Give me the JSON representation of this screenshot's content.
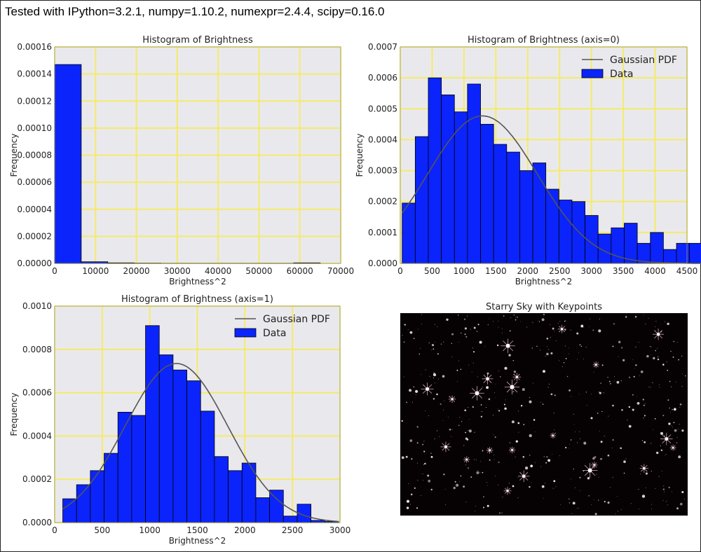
{
  "header": {
    "text": "Tested with IPython=3.2.1, numpy=1.10.2, numexpr=2.4.4, scipy=0.16.0"
  },
  "colors": {
    "axes_bg": "#e9e9ed",
    "grid": "#f5ea6a",
    "bar_fill": "#0b24fb",
    "bar_edge": "#000000",
    "pdf_line": "#555555",
    "sky_bg": "#060203",
    "star": "#f4e6ec"
  },
  "chart_data": [
    {
      "id": "hist_all",
      "type": "bar",
      "title": "Histogram of Brightness",
      "xlabel": "Brightness^2",
      "ylabel": "Frequency",
      "xlim": [
        0,
        70000
      ],
      "ylim": [
        0,
        0.00016
      ],
      "xticks": [
        0,
        10000,
        20000,
        30000,
        40000,
        50000,
        60000,
        70000
      ],
      "xtick_labels": [
        "0",
        "10000",
        "20000",
        "30000",
        "40000",
        "50000",
        "60000",
        "70000"
      ],
      "yticks": [
        0,
        2e-05,
        4e-05,
        6e-05,
        8e-05,
        0.0001,
        0.00012,
        0.00014,
        0.00016
      ],
      "ytick_labels": [
        "0.00000",
        "0.00002",
        "0.00004",
        "0.00006",
        "0.00008",
        "0.00010",
        "0.00012",
        "0.00014",
        "0.00016"
      ],
      "bin_edges": [
        0,
        6500,
        13000,
        19500,
        26000,
        32500,
        39000,
        45500,
        52000,
        58500,
        65000
      ],
      "values": [
        0.000147,
        1.2e-06,
        4e-07,
        2e-07,
        1e-07,
        1e-07,
        1e-07,
        1e-07,
        1e-07,
        4e-07
      ],
      "grid": true
    },
    {
      "id": "hist_axis0",
      "type": "bar",
      "title": "Histogram of Brightness (axis=0)",
      "xlabel": "Brightness^2",
      "ylabel": "Frequency",
      "xlim": [
        0,
        4500
      ],
      "ylim": [
        0,
        0.0007
      ],
      "xticks": [
        0,
        500,
        1000,
        1500,
        2000,
        2500,
        3000,
        3500,
        4000,
        4500
      ],
      "xtick_labels": [
        "0",
        "500",
        "1000",
        "1500",
        "2000",
        "2500",
        "3000",
        "3500",
        "4000",
        "4500"
      ],
      "yticks": [
        0,
        0.0001,
        0.0002,
        0.0003,
        0.0004,
        0.0005,
        0.0006,
        0.0007
      ],
      "ytick_labels": [
        "0.0000",
        "0.0001",
        "0.0002",
        "0.0003",
        "0.0004",
        "0.0005",
        "0.0006",
        "0.0007"
      ],
      "bin_start": 30,
      "bin_width": 205,
      "values": [
        0.000195,
        0.00041,
        0.0006,
        0.000545,
        0.00049,
        0.00058,
        0.00045,
        0.000385,
        0.00036,
        0.0003,
        0.000325,
        0.00024,
        0.000205,
        0.0002,
        0.000155,
        9.5e-05,
        0.000115,
        0.00013,
        6.5e-05,
        0.0001,
        4.5e-05,
        6.5e-05,
        6.5e-05,
        0.0,
        0.0,
        2e-05
      ],
      "pdf": {
        "name": "Gaussian PDF",
        "mean": 1290,
        "peak": 0.000477,
        "sigma": 860
      },
      "legend": [
        "Gaussian PDF",
        "Data"
      ],
      "legend_loc": "upper right",
      "grid": true
    },
    {
      "id": "hist_axis1",
      "type": "bar",
      "title": "Histogram of Brightness (axis=1)",
      "xlabel": "Brightness^2",
      "ylabel": "Frequency",
      "xlim": [
        0,
        3000
      ],
      "ylim": [
        0,
        0.001
      ],
      "xticks": [
        0,
        500,
        1000,
        1500,
        2000,
        2500,
        3000
      ],
      "xtick_labels": [
        "0",
        "500",
        "1000",
        "1500",
        "2000",
        "2500",
        "3000"
      ],
      "yticks": [
        0,
        0.0002,
        0.0004,
        0.0006,
        0.0008,
        0.001
      ],
      "ytick_labels": [
        "0.0000",
        "0.0002",
        "0.0004",
        "0.0006",
        "0.0008",
        "0.0010"
      ],
      "bin_start": 85,
      "bin_width": 145,
      "values": [
        0.00011,
        0.000175,
        0.00024,
        0.00032,
        0.00051,
        0.000495,
        0.00091,
        0.000775,
        0.000705,
        0.000655,
        0.000515,
        0.000305,
        0.00024,
        0.000275,
        0.000115,
        0.00015,
        3e-05,
        8.5e-05,
        1e-05,
        5e-06
      ],
      "pdf": {
        "name": "Gaussian PDF",
        "mean": 1280,
        "peak": 0.000735,
        "sigma": 540
      },
      "legend": [
        "Gaussian PDF",
        "Data"
      ],
      "legend_loc": "upper right",
      "grid": true
    }
  ],
  "image_panel": {
    "title": "Starry Sky with Keypoints"
  }
}
